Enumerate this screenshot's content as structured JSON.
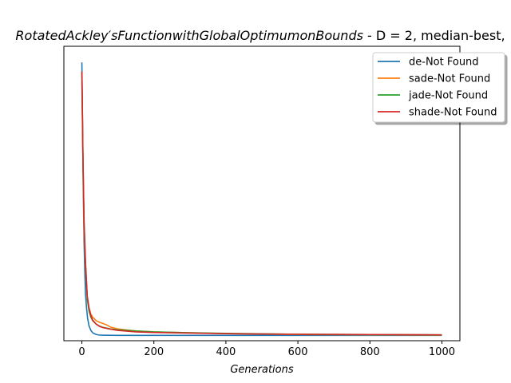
{
  "chart_data": {
    "type": "line",
    "title": {
      "italic_part": "RotatedAckley′sFunctionwithGlobalOptimumonBounds",
      "plain_part": " - D = 2, median-best,"
    },
    "xlabel": "Generations",
    "ylabel": "",
    "xlim": [
      -50,
      1050
    ],
    "ylim": [
      0,
      1
    ],
    "x_ticks": [
      0,
      200,
      400,
      600,
      800,
      1000
    ],
    "y_ticks_labeled": false,
    "grid": false,
    "legend_position": "top-right",
    "series": [
      {
        "name": "de-Not Found",
        "color": "#1f77b4",
        "points": [
          [
            0,
            0.945
          ],
          [
            2,
            0.72
          ],
          [
            4,
            0.5
          ],
          [
            6,
            0.34
          ],
          [
            8,
            0.24
          ],
          [
            10,
            0.16
          ],
          [
            13,
            0.11
          ],
          [
            16,
            0.075
          ],
          [
            20,
            0.05
          ],
          [
            25,
            0.035
          ],
          [
            30,
            0.027
          ],
          [
            40,
            0.021
          ],
          [
            50,
            0.019
          ],
          [
            100,
            0.018
          ],
          [
            200,
            0.018
          ],
          [
            400,
            0.018
          ],
          [
            600,
            0.018
          ],
          [
            800,
            0.018
          ],
          [
            1000,
            0.018
          ]
        ]
      },
      {
        "name": "sade-Not Found",
        "color": "#ff7f0e",
        "points": [
          [
            0,
            0.88
          ],
          [
            3,
            0.6
          ],
          [
            6,
            0.38
          ],
          [
            10,
            0.25
          ],
          [
            15,
            0.15
          ],
          [
            20,
            0.11
          ],
          [
            25,
            0.09
          ],
          [
            30,
            0.08
          ],
          [
            40,
            0.068
          ],
          [
            50,
            0.062
          ],
          [
            60,
            0.058
          ],
          [
            70,
            0.053
          ],
          [
            80,
            0.046
          ],
          [
            100,
            0.04
          ],
          [
            150,
            0.033
          ],
          [
            200,
            0.03
          ],
          [
            300,
            0.027
          ],
          [
            400,
            0.024
          ],
          [
            600,
            0.021
          ],
          [
            800,
            0.02
          ],
          [
            1000,
            0.019
          ]
        ]
      },
      {
        "name": "jade-Not Found",
        "color": "#2ca02c",
        "points": [
          [
            0,
            0.91
          ],
          [
            3,
            0.62
          ],
          [
            6,
            0.4
          ],
          [
            10,
            0.26
          ],
          [
            15,
            0.14
          ],
          [
            20,
            0.1
          ],
          [
            25,
            0.08
          ],
          [
            30,
            0.068
          ],
          [
            40,
            0.056
          ],
          [
            50,
            0.049
          ],
          [
            60,
            0.045
          ],
          [
            80,
            0.04
          ],
          [
            100,
            0.037
          ],
          [
            150,
            0.033
          ],
          [
            200,
            0.03
          ],
          [
            300,
            0.027
          ],
          [
            400,
            0.025
          ],
          [
            600,
            0.022
          ],
          [
            800,
            0.021
          ],
          [
            1000,
            0.02
          ]
        ]
      },
      {
        "name": "shade-Not Found",
        "color": "#d62728",
        "points": [
          [
            0,
            0.915
          ],
          [
            3,
            0.63
          ],
          [
            6,
            0.41
          ],
          [
            10,
            0.27
          ],
          [
            15,
            0.15
          ],
          [
            20,
            0.11
          ],
          [
            25,
            0.085
          ],
          [
            30,
            0.07
          ],
          [
            40,
            0.056
          ],
          [
            50,
            0.048
          ],
          [
            60,
            0.044
          ],
          [
            80,
            0.039
          ],
          [
            100,
            0.035
          ],
          [
            150,
            0.03
          ],
          [
            200,
            0.028
          ],
          [
            300,
            0.026
          ],
          [
            400,
            0.024
          ],
          [
            600,
            0.022
          ],
          [
            800,
            0.021
          ],
          [
            1000,
            0.02
          ]
        ]
      }
    ]
  }
}
